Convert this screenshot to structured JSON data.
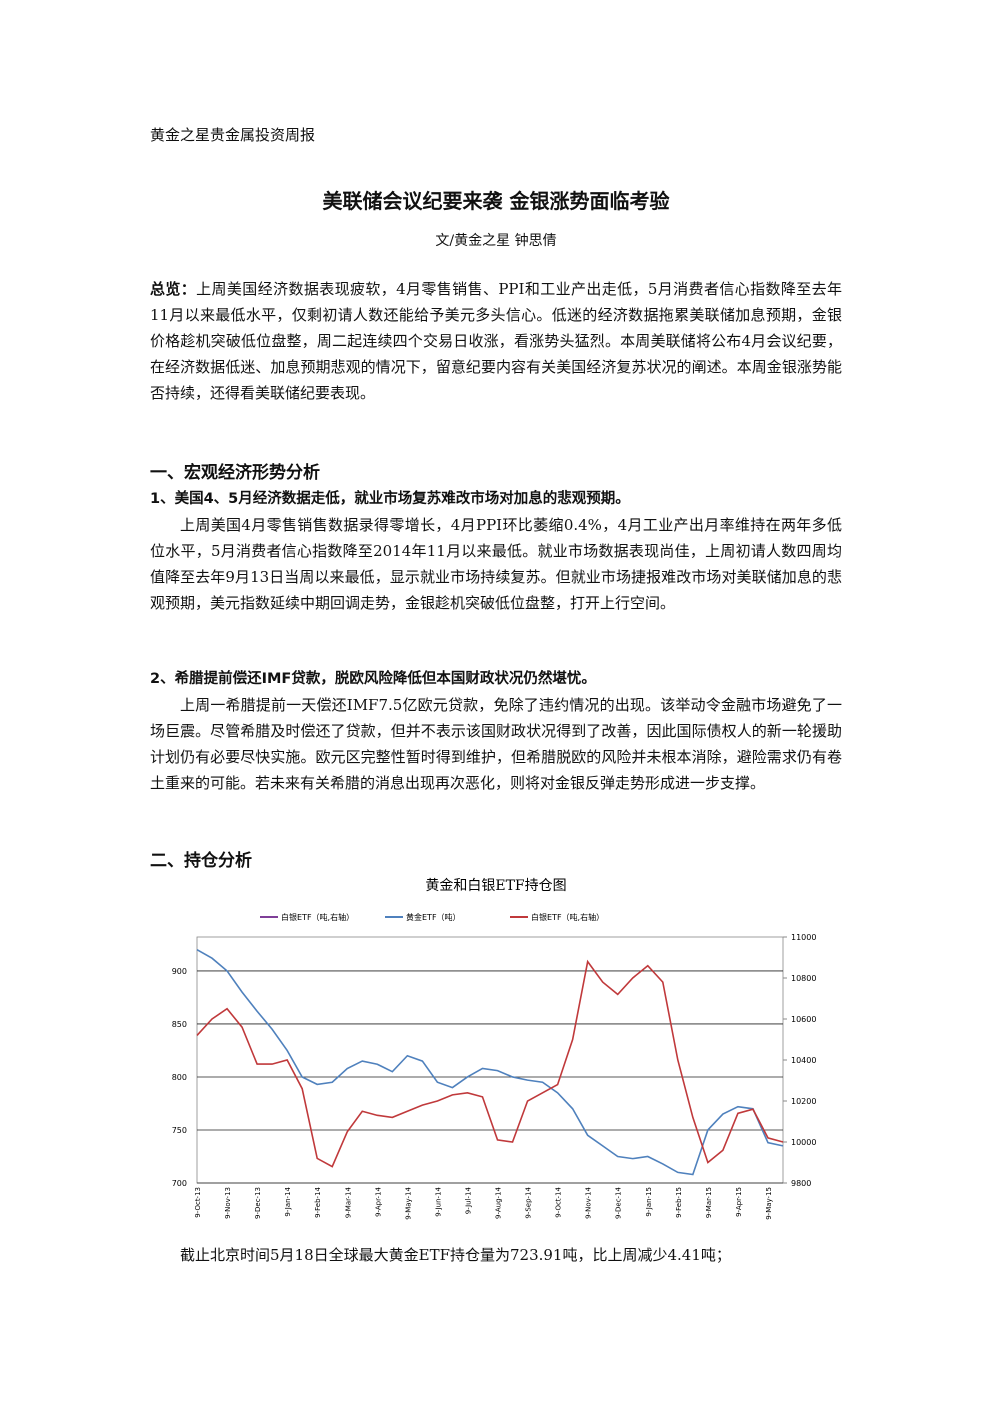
{
  "header": {
    "title": "黄金之星贵金属投资周报"
  },
  "article": {
    "title": "美联储会议纪要来袭 金银涨势面临考验",
    "author": "文/黄金之星 钟思倩"
  },
  "overview": {
    "label": "总览：",
    "text": "上周美国经济数据表现疲软，4月零售销售、PPI和工业产出走低，5月消费者信心指数降至去年11月以来最低水平，仅剩初请人数还能给予美元多头信心。低迷的经济数据拖累美联储加息预期，金银价格趁机突破低位盘整，周二起连续四个交易日收涨，看涨势头猛烈。本周美联储将公布4月会议纪要，在经济数据低迷、加息预期悲观的情况下，留意纪要内容有关美国经济复苏状况的阐述。本周金银涨势能否持续，还得看美联储纪要表现。"
  },
  "sections": [
    {
      "heading": "一、宏观经济形势分析",
      "items": [
        {
          "heading": "1、美国4、5月经济数据走低，就业市场复苏难改市场对加息的悲观预期。",
          "text": "上周美国4月零售销售数据录得零增长，4月PPI环比萎缩0.4%，4月工业产出月率维持在两年多低位水平，5月消费者信心指数降至2014年11月以来最低。就业市场数据表现尚佳，上周初请人数四周均值降至去年9月13日当周以来最低，显示就业市场持续复苏。但就业市场捷报难改市场对美联储加息的悲观预期，美元指数延续中期回调走势，金银趁机突破低位盘整，打开上行空间。"
        },
        {
          "heading": "2、希腊提前偿还IMF贷款，脱欧风险降低但本国财政状况仍然堪忧。",
          "text": "上周一希腊提前一天偿还IMF7.5亿欧元贷款，免除了违约情况的出现。该举动令金融市场避免了一场巨震。尽管希腊及时偿还了贷款，但并不表示该国财政状况得到了改善，因此国际债权人的新一轮援助计划仍有必要尽快实施。欧元区完整性暂时得到维护，但希腊脱欧的风险并未根本消除，避险需求仍有卷土重来的可能。若未来有关希腊的消息出现再次恶化，则将对金银反弹走势形成进一步支撑。"
        }
      ]
    },
    {
      "heading": "二、持仓分析",
      "text": "截止北京时间5月18日全球最大黄金ETF持仓量为723.91吨，比上周减少4.41吨；"
    }
  ],
  "chart_data": {
    "type": "line",
    "title": "黄金和白银ETF持仓图",
    "categories": [
      "9-Oct-13",
      null,
      "9-Nov-13",
      null,
      "9-Dec-13",
      null,
      "9-Jan-14",
      null,
      "9-Feb-14",
      null,
      "9-Mar-14",
      null,
      "9-Apr-14",
      null,
      "9-May-14",
      null,
      "9-Jun-14",
      null,
      "9-Jul-14",
      null,
      "9-Aug-14",
      null,
      "9-Sep-14",
      null,
      "9-Oct-14",
      null,
      "9-Nov-14",
      null,
      "9-Dec-14",
      null,
      "9-Jan-15",
      null,
      "9-Feb-15",
      null,
      "9-Mar-15",
      null,
      "9-Apr-15",
      null,
      "9-May-15",
      null
    ],
    "series": [
      {
        "name": "白银ETF（吨,右轴）",
        "color": "#7f3f98",
        "axis": "y2",
        "values": [
          null,
          null,
          null,
          null,
          null,
          null,
          null,
          null,
          null,
          null,
          null,
          null,
          null,
          null,
          null,
          null,
          null,
          null,
          null,
          null,
          null,
          null,
          null,
          null,
          null,
          null,
          null,
          null,
          null,
          null,
          null,
          null,
          null,
          null,
          null,
          null,
          null,
          null,
          null,
          null
        ]
      },
      {
        "name": "黄金ETF（吨）",
        "color": "#4f81bd",
        "values": [
          920,
          912,
          900,
          880,
          862,
          845,
          825,
          800,
          793,
          795,
          808,
          815,
          812,
          805,
          820,
          815,
          795,
          790,
          800,
          808,
          806,
          800,
          797,
          795,
          785,
          770,
          745,
          735,
          725,
          723,
          725,
          718,
          710,
          708,
          750,
          765,
          772,
          770,
          738,
          735
        ]
      },
      {
        "name": "白银ETF（吨,右轴）",
        "color": "#c0393b",
        "axis": "y2",
        "values": [
          10520,
          10600,
          10650,
          10560,
          10380,
          10380,
          10400,
          10260,
          9920,
          9880,
          10050,
          10150,
          10130,
          10120,
          10150,
          10180,
          10200,
          10230,
          10240,
          10220,
          10010,
          10000,
          10200,
          10240,
          10280,
          10500,
          10880,
          10780,
          10720,
          10800,
          10860,
          10780,
          10400,
          10120,
          9900,
          9960,
          10140,
          10160,
          10020,
          10000
        ]
      }
    ],
    "ylim": [
      700,
      932
    ],
    "yticks": [
      700,
      750,
      800,
      850,
      900
    ],
    "y2lim": [
      9800,
      11000
    ],
    "y2ticks": [
      9800,
      10000,
      10200,
      10400,
      10600,
      10800,
      11000
    ],
    "grid": true
  }
}
